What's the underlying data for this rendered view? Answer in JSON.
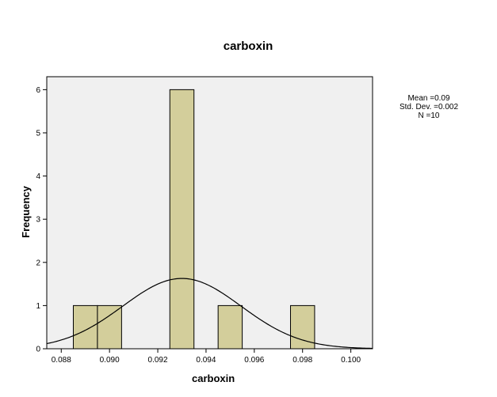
{
  "chart_data": {
    "type": "bar",
    "subtype": "histogram",
    "title": "carboxin",
    "xlabel": "carboxin",
    "ylabel": "Frequency",
    "xlim": [
      0.0874,
      0.1009
    ],
    "ylim": [
      0,
      6.3
    ],
    "xticks": [
      "0.088",
      "0.090",
      "0.092",
      "0.094",
      "0.096",
      "0.098",
      "0.100"
    ],
    "yticks": [
      "0",
      "1",
      "2",
      "3",
      "4",
      "5",
      "6"
    ],
    "bins": [
      {
        "start": 0.0885,
        "end": 0.0895,
        "count": 1
      },
      {
        "start": 0.0895,
        "end": 0.0905,
        "count": 1
      },
      {
        "start": 0.0925,
        "end": 0.0935,
        "count": 6
      },
      {
        "start": 0.0945,
        "end": 0.0955,
        "count": 1
      },
      {
        "start": 0.0975,
        "end": 0.0985,
        "count": 1
      }
    ],
    "bar_color": "#d3ce9b",
    "plot_background": "#f0f0f0",
    "normal_curve": {
      "mean": 0.093,
      "sd": 0.00245,
      "n": 10,
      "bin_width": 0.001
    },
    "stats": [
      "Mean =0.09",
      "Std. Dev. =0.002",
      "N =10"
    ]
  }
}
